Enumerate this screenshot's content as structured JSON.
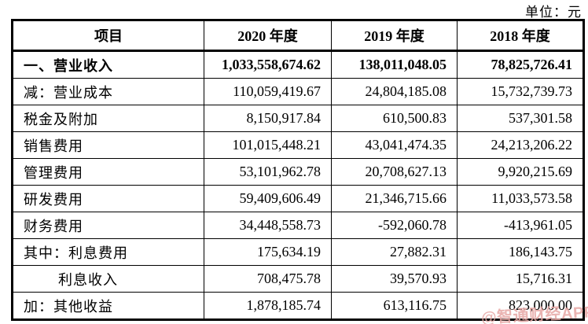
{
  "unit_label": "单位：元",
  "watermark": "@智通财经APP",
  "colors": {
    "border": "#000000",
    "text": "#000000",
    "watermark": "#e7a8a5",
    "background": "#ffffff"
  },
  "table": {
    "columns": [
      "项目",
      "2020 年度",
      "2019 年度",
      "2018 年度"
    ],
    "rows": [
      {
        "label": "一、营业收入",
        "values": [
          "1,033,558,674.62",
          "138,011,048.05",
          "78,825,726.41"
        ]
      },
      {
        "label": "减：营业成本",
        "values": [
          "110,059,419.67",
          "24,804,185.08",
          "15,732,739.73"
        ]
      },
      {
        "label": "税金及附加",
        "values": [
          "8,150,917.84",
          "610,500.83",
          "537,301.58"
        ]
      },
      {
        "label": "销售费用",
        "values": [
          "101,015,448.21",
          "43,041,474.35",
          "24,213,206.22"
        ]
      },
      {
        "label": "管理费用",
        "values": [
          "53,101,962.78",
          "20,708,627.13",
          "9,920,215.69"
        ]
      },
      {
        "label": "研发费用",
        "values": [
          "59,409,606.49",
          "21,346,715.66",
          "11,033,573.58"
        ]
      },
      {
        "label": "财务费用",
        "values": [
          "34,448,558.73",
          "-592,060.78",
          "-413,961.05"
        ]
      },
      {
        "label": "其中：利息费用",
        "values": [
          "175,634.19",
          "27,882.31",
          "186,143.75"
        ]
      },
      {
        "label": "利息收入",
        "values": [
          "708,475.78",
          "39,570.93",
          "15,716.31"
        ]
      },
      {
        "label": "加：其他收益",
        "values": [
          "1,878,185.74",
          "613,116.75",
          "823,000.00"
        ]
      }
    ]
  }
}
